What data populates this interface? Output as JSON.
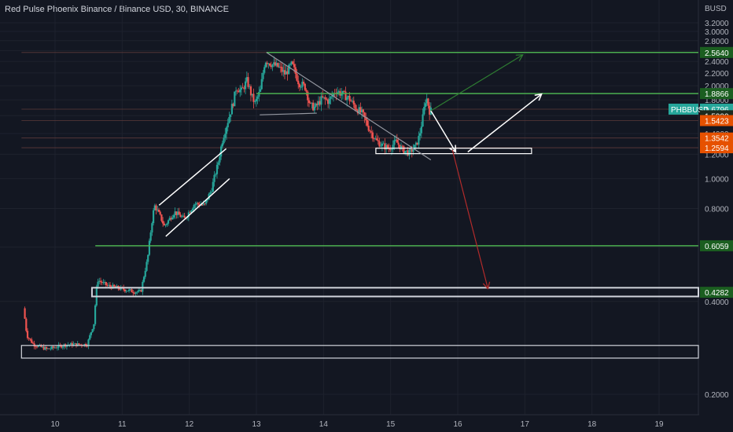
{
  "header": {
    "title": "Red Pulse Phoenix Binance / Binance USD, 30, BINANCE"
  },
  "chart_data": {
    "type": "candlestick",
    "symbol": "PHBBUSD",
    "currency_label": "BUSD",
    "ylim": [
      0.14,
      3.3
    ],
    "xlim": [
      9.5,
      19.5
    ],
    "y_ticks": [
      "3.2000",
      "3.0000",
      "2.8000",
      "2.6000",
      "2.4000",
      "2.2000",
      "2.0000",
      "1.8000",
      "1.6000",
      "1.4000",
      "1.2000",
      "1.0000",
      "0.8000",
      "0.6000",
      "0.4000",
      "0.2000"
    ],
    "x_ticks": [
      "10",
      "11",
      "12",
      "13",
      "14",
      "15",
      "16",
      "17",
      "18",
      "19"
    ],
    "colors": {
      "up": "#26a69a",
      "down": "#ef5350",
      "green_line": "#4caf50",
      "white": "#ffffff",
      "red_arrow": "#b22b2b",
      "green_arrow": "#2e7d32",
      "trend": "#9598a1"
    },
    "price_tags": [
      {
        "label": "2.5640",
        "value": 2.564,
        "bg": "#1b5e20",
        "fg": "#ffffff"
      },
      {
        "label": "1.8866",
        "value": 1.8866,
        "bg": "#1b5e20",
        "fg": "#ffffff"
      },
      {
        "label": "1.6796",
        "value": 1.6796,
        "bg": "#26a69a",
        "fg": "#ffffff",
        "symbol_label": "PHBBUSD"
      },
      {
        "label": "1.5990",
        "value": 1.599,
        "bg": "#1e2a1e",
        "fg": "#ffffff"
      },
      {
        "label": "1.5423",
        "value": 1.5423,
        "bg": "#e65100",
        "fg": "#ffffff"
      },
      {
        "label": "1.3542",
        "value": 1.3542,
        "bg": "#e65100",
        "fg": "#ffffff"
      },
      {
        "label": "1.2594",
        "value": 1.2594,
        "bg": "#e65100",
        "fg": "#ffffff"
      },
      {
        "label": "0.6059",
        "value": 0.6059,
        "bg": "#1b5e20",
        "fg": "#ffffff"
      },
      {
        "label": "0.4282",
        "value": 0.4282,
        "bg": "#1b5e20",
        "fg": "#ffffff"
      }
    ],
    "horizontal_levels": [
      {
        "value": 2.564,
        "from_x": 13.15,
        "color": "#4caf50",
        "width": 1.5
      },
      {
        "value": 1.8866,
        "from_x": 13.0,
        "color": "#4caf50",
        "width": 1.5
      },
      {
        "value": 0.6059,
        "from_x": 10.6,
        "color": "#4caf50",
        "width": 1.5
      },
      {
        "value": 2.564,
        "from_x": 9.5,
        "color": "#5d3a3a",
        "width": 0.8
      },
      {
        "value": 1.6796,
        "from_x": 9.5,
        "color": "#5d3a3a",
        "width": 0.8
      },
      {
        "value": 1.5423,
        "from_x": 9.5,
        "color": "#5d3a3a",
        "width": 0.8
      },
      {
        "value": 1.3542,
        "from_x": 9.5,
        "color": "#5d3a3a",
        "width": 0.8
      },
      {
        "value": 1.2594,
        "from_x": 9.5,
        "color": "#5d3a3a",
        "width": 0.8
      }
    ],
    "rect_zones": [
      {
        "x0": 10.55,
        "x1": 19.6,
        "y0": 0.415,
        "y1": 0.443,
        "color": "#d1d4dc",
        "width": 2
      },
      {
        "x0": 9.5,
        "x1": 19.6,
        "y0": 0.262,
        "y1": 0.288,
        "color": "#d1d4dc",
        "width": 1.2
      },
      {
        "x0": 14.78,
        "x1": 17.1,
        "y0": 1.205,
        "y1": 1.255,
        "color": "#ffffff",
        "width": 1.2
      }
    ],
    "trend_lines": [
      {
        "x0": 13.15,
        "y0": 2.564,
        "x1": 15.6,
        "y1": 1.15,
        "color": "#9598a1",
        "width": 1.2
      },
      {
        "x0": 13.05,
        "y0": 1.61,
        "x1": 13.9,
        "y1": 1.63,
        "color": "#9598a1",
        "width": 1.2
      },
      {
        "x0": 11.55,
        "y0": 0.82,
        "x1": 12.55,
        "y1": 1.25,
        "color": "#ffffff",
        "width": 1.5
      },
      {
        "x0": 11.65,
        "y0": 0.65,
        "x1": 12.6,
        "y1": 1.0,
        "color": "#ffffff",
        "width": 1.5
      }
    ],
    "arrows": [
      {
        "x0": 15.6,
        "y0": 1.66,
        "x1": 15.97,
        "y1": 1.22,
        "color": "#ffffff",
        "width": 1.5
      },
      {
        "x0": 16.15,
        "y0": 1.22,
        "x1": 17.25,
        "y1": 1.88,
        "color": "#ffffff",
        "width": 1.5
      },
      {
        "x0": 15.6,
        "y0": 1.66,
        "x1": 16.97,
        "y1": 2.52,
        "color": "#2e7d32",
        "width": 1.2
      },
      {
        "x0": 15.92,
        "y0": 1.24,
        "x1": 16.45,
        "y1": 0.44,
        "color": "#b22b2b",
        "width": 1.2
      }
    ],
    "price_path": [
      [
        9.55,
        0.38
      ],
      [
        9.6,
        0.31
      ],
      [
        9.7,
        0.29
      ],
      [
        9.9,
        0.28
      ],
      [
        10.2,
        0.29
      ],
      [
        10.5,
        0.29
      ],
      [
        10.6,
        0.34
      ],
      [
        10.65,
        0.47
      ],
      [
        10.8,
        0.45
      ],
      [
        11.0,
        0.44
      ],
      [
        11.2,
        0.43
      ],
      [
        11.3,
        0.43
      ],
      [
        11.4,
        0.55
      ],
      [
        11.5,
        0.82
      ],
      [
        11.58,
        0.76
      ],
      [
        11.65,
        0.7
      ],
      [
        11.8,
        0.78
      ],
      [
        11.95,
        0.74
      ],
      [
        12.1,
        0.83
      ],
      [
        12.25,
        0.82
      ],
      [
        12.35,
        0.92
      ],
      [
        12.45,
        1.12
      ],
      [
        12.52,
        1.35
      ],
      [
        12.6,
        1.55
      ],
      [
        12.68,
        1.78
      ],
      [
        12.72,
        1.98
      ],
      [
        12.8,
        1.92
      ],
      [
        12.88,
        2.08
      ],
      [
        12.95,
        1.85
      ],
      [
        13.0,
        1.75
      ],
      [
        13.08,
        1.93
      ],
      [
        13.15,
        2.42
      ],
      [
        13.25,
        2.35
      ],
      [
        13.35,
        2.3
      ],
      [
        13.45,
        2.18
      ],
      [
        13.55,
        2.35
      ],
      [
        13.65,
        2.05
      ],
      [
        13.75,
        1.98
      ],
      [
        13.82,
        1.72
      ],
      [
        13.9,
        1.7
      ],
      [
        14.0,
        1.82
      ],
      [
        14.1,
        1.78
      ],
      [
        14.2,
        1.93
      ],
      [
        14.3,
        1.88
      ],
      [
        14.4,
        1.82
      ],
      [
        14.5,
        1.7
      ],
      [
        14.6,
        1.62
      ],
      [
        14.7,
        1.45
      ],
      [
        14.8,
        1.33
      ],
      [
        14.9,
        1.28
      ],
      [
        15.0,
        1.25
      ],
      [
        15.1,
        1.32
      ],
      [
        15.2,
        1.24
      ],
      [
        15.3,
        1.21
      ],
      [
        15.4,
        1.28
      ],
      [
        15.45,
        1.38
      ],
      [
        15.5,
        1.58
      ],
      [
        15.55,
        1.85
      ],
      [
        15.6,
        1.66
      ]
    ]
  }
}
